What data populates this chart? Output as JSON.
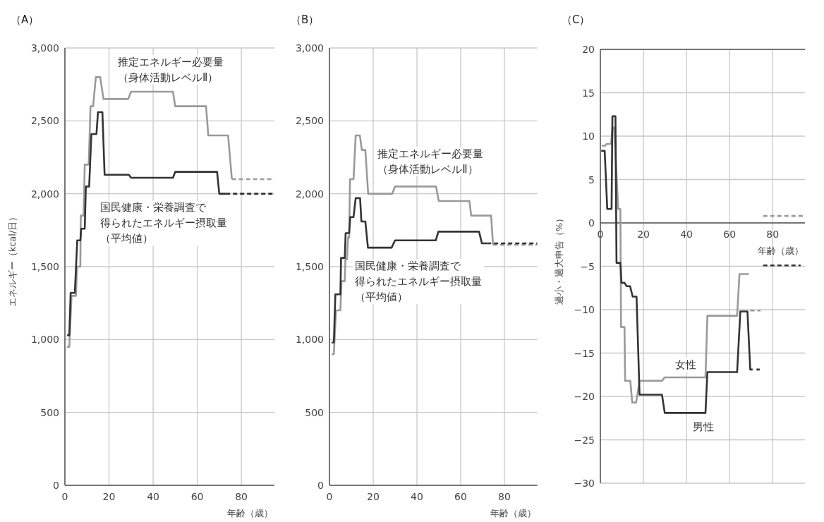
{
  "chart_data": [
    {
      "type": "line",
      "title": "（A）",
      "xlabel": "年齢（歳）",
      "ylabel": "エネルギー（kcal/日）",
      "xlim": [
        0,
        95
      ],
      "ylim": [
        0,
        3000
      ],
      "xticks": [
        0,
        20,
        40,
        60,
        80
      ],
      "yticks": [
        0,
        500,
        {
          "value": 1000,
          "label": "1,000"
        },
        {
          "value": 1500,
          "label": "1,500"
        },
        {
          "value": 2000,
          "label": "2,000"
        },
        {
          "value": 2500,
          "label": "2,500"
        },
        {
          "value": 3000,
          "label": "3,000"
        }
      ],
      "grid": true,
      "marker": "none",
      "line_style": "solid",
      "series": [
        {
          "name": "推定エネルギー必要量（身体活動レベルⅡ）",
          "color": "#9a9a9a",
          "x": [
            1,
            2,
            3,
            5,
            5.5,
            7,
            7.2,
            8.5,
            9,
            10.8,
            11.6,
            12.8,
            14,
            16,
            17.5,
            28.7,
            30,
            49,
            50,
            64,
            65,
            74,
            75.7
          ],
          "values": [
            950,
            950,
            1300,
            1300,
            1500,
            1500,
            1850,
            1850,
            2200,
            2200,
            2600,
            2600,
            2800,
            2800,
            2650,
            2650,
            2700,
            2700,
            2600,
            2600,
            2400,
            2400,
            2100
          ]
        },
        {
          "color": "#9a9a9a",
          "line_style": "dashed",
          "x": [
            75.7,
            95
          ],
          "values": [
            2100,
            2100
          ]
        },
        {
          "name": "国民健康・栄養調査で得られたエネルギー摂取量（平均値）",
          "color": "#333333",
          "x": [
            1,
            2,
            2.6,
            4.5,
            5.6,
            7,
            7.4,
            9,
            9.5,
            11,
            12,
            14.3,
            15,
            17,
            18,
            29,
            30,
            49,
            50,
            69,
            70,
            73
          ],
          "values": [
            1030,
            1030,
            1320,
            1320,
            1680,
            1680,
            1760,
            1760,
            2050,
            2050,
            2410,
            2410,
            2560,
            2560,
            2130,
            2130,
            2110,
            2110,
            2150,
            2150,
            2000,
            2000
          ]
        },
        {
          "color": "#333333",
          "line_style": "dashed",
          "x": [
            73,
            95
          ],
          "values": [
            2000,
            2000
          ]
        }
      ]
    },
    {
      "type": "line",
      "title": "（B）",
      "xlabel": "年齢（歳）",
      "xlim": [
        0,
        95
      ],
      "ylim": [
        0,
        3000
      ],
      "xticks": [
        0,
        20,
        40,
        60,
        80
      ],
      "yticks": [
        0,
        500,
        {
          "value": 1000,
          "label": "1,000"
        },
        {
          "value": 1500,
          "label": "1,500"
        },
        {
          "value": 2000,
          "label": "2,000"
        },
        {
          "value": 2500,
          "label": "2,500"
        },
        {
          "value": 3000,
          "label": "3,000"
        }
      ],
      "grid": true,
      "marker": "none",
      "line_style": "solid",
      "series": [
        {
          "name": "推定エネルギー必要量（身体活動レベルⅡ）",
          "color": "#9a9a9a",
          "x": [
            1,
            2,
            3,
            5,
            5.5,
            7,
            7.3,
            8,
            8.5,
            9,
            9.4,
            11,
            12,
            13.9,
            14.8,
            16.4,
            17.7,
            28.7,
            30,
            48.7,
            50,
            64,
            64.8,
            73.9,
            74.8
          ],
          "values": [
            900,
            900,
            1200,
            1200,
            1400,
            1400,
            1550,
            1550,
            1700,
            1700,
            2100,
            2100,
            2400,
            2400,
            2300,
            2300,
            2000,
            2000,
            2050,
            2050,
            1950,
            1950,
            1850,
            1850,
            1650
          ]
        },
        {
          "color": "#9a9a9a",
          "line_style": "dashed",
          "x": [
            74.8,
            95
          ],
          "values": [
            1650,
            1650
          ]
        },
        {
          "name": "国民健康・栄養調査で得られたエネルギー摂取量（平均値）",
          "color": "#333333",
          "x": [
            1,
            2,
            2.7,
            5,
            5.3,
            7,
            7.4,
            9,
            9.5,
            11,
            12,
            14,
            14.6,
            16.4,
            17.6,
            28.4,
            30,
            48.6,
            49.8,
            68.4,
            69.7,
            72
          ],
          "values": [
            980,
            980,
            1310,
            1310,
            1560,
            1560,
            1730,
            1730,
            1840,
            1840,
            1970,
            1970,
            1810,
            1810,
            1630,
            1630,
            1680,
            1680,
            1740,
            1740,
            1660,
            1660
          ]
        },
        {
          "color": "#333333",
          "line_style": "dashed",
          "x": [
            72,
            95
          ],
          "values": [
            1660,
            1660
          ]
        }
      ]
    },
    {
      "type": "line",
      "title": "（C）",
      "xlabel": "年齢（歳）",
      "ylabel": "過小・過大申告（%）",
      "xlim": [
        0,
        95
      ],
      "ylim": [
        -30,
        20
      ],
      "xticks": [
        0,
        20,
        40,
        60,
        80
      ],
      "yticks": [
        -30,
        -25,
        -20,
        -15,
        -10,
        -5,
        0,
        5,
        10,
        15,
        20
      ],
      "grid": true,
      "marker": "none",
      "line_style": "solid",
      "series": [
        {
          "name": "女性",
          "color": "#9a9a9a",
          "x": [
            0.6,
            2.3,
            2.8,
            5,
            5.6,
            6.4,
            8.3,
            9.3,
            9.6,
            11.2,
            11.5,
            13.9,
            14.8,
            16.6,
            18.2,
            28.6,
            29.9,
            48.8,
            49.7,
            63.5,
            64.6,
            69
          ],
          "values": [
            8.9,
            8.9,
            9.1,
            9.1,
            11,
            11,
            1.6,
            1.6,
            -12,
            -12,
            -18.2,
            -18.2,
            -20.7,
            -20.7,
            -18.2,
            -18.2,
            -17.8,
            -17.8,
            -10.7,
            -10.7,
            -5.9,
            -5.9
          ]
        },
        {
          "color": "#9a9a9a",
          "line_style": "dashed",
          "x": [
            69.6,
            74.4,
            75,
            75.6,
            95
          ],
          "values": [
            -10.1,
            -10.1,
            null,
            0.8,
            0.8
          ]
        },
        {
          "name": "男性",
          "color": "#333333",
          "x": [
            0.4,
            2,
            3.2,
            5.2,
            5.6,
            7,
            7.5,
            9.3,
            9.8,
            11.2,
            12.2,
            13.8,
            15,
            16.8,
            18.2,
            28.6,
            29.9,
            48.8,
            49.7,
            63.5,
            65,
            68.3,
            69.6,
            70.7
          ],
          "values": [
            8.3,
            8.3,
            1.6,
            1.6,
            12.3,
            12.3,
            -4.6,
            -4.6,
            -6.9,
            -6.9,
            -7.3,
            -7.3,
            -8.5,
            -8.5,
            -19.8,
            -19.8,
            -21.9,
            -21.9,
            -17.2,
            -17.2,
            -10.2,
            -10.2,
            -16.9,
            -16.9
          ]
        },
        {
          "color": "#333333",
          "line_style": "dashed",
          "x": [
            72.5,
            74,
            75,
            75.6,
            93
          ],
          "values": [
            -16.9,
            -16.9,
            null,
            -4.9,
            -4.9
          ]
        }
      ]
    }
  ]
}
